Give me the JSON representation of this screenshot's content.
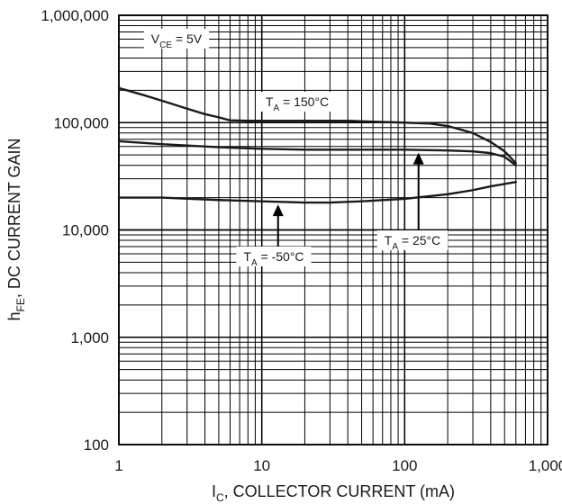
{
  "chart_data": {
    "type": "line",
    "x_scale": "log",
    "y_scale": "log",
    "xlim": [
      1,
      1000
    ],
    "ylim": [
      100,
      1000000
    ],
    "grid": true,
    "x_ticks": [
      {
        "value": 1,
        "label": "1"
      },
      {
        "value": 10,
        "label": "10"
      },
      {
        "value": 100,
        "label": "100"
      },
      {
        "value": 1000,
        "label": "1,000"
      }
    ],
    "y_ticks": [
      {
        "value": 100,
        "label": "100"
      },
      {
        "value": 1000,
        "label": "1,000"
      },
      {
        "value": 10000,
        "label": "10,000"
      },
      {
        "value": 100000,
        "label": "100,000"
      },
      {
        "value": 1000000,
        "label": "1,000,000"
      }
    ],
    "xlabel": {
      "main": "I",
      "sub": "C",
      "rest": ", COLLECTOR CURRENT (mA)"
    },
    "ylabel": {
      "main": "h",
      "sub": "FE",
      "rest": ", DC CURRENT GAIN"
    },
    "condition": {
      "main": "V",
      "sub": "CE",
      "rest": " = 5V"
    },
    "series": [
      {
        "name": "150°C",
        "label": {
          "main": "T",
          "sub": "A",
          "rest": " = 150°C"
        },
        "x": [
          1,
          1.5,
          2,
          3,
          4,
          5,
          6,
          8,
          10,
          20,
          40,
          60,
          100,
          150,
          200,
          300,
          400,
          500,
          600
        ],
        "y": [
          210000,
          180000,
          160000,
          135000,
          120000,
          112000,
          105000,
          104000,
          104000,
          104000,
          104000,
          102000,
          100000,
          98000,
          93000,
          80000,
          66000,
          54000,
          42000
        ]
      },
      {
        "name": "25°C",
        "label": {
          "main": "T",
          "sub": "A",
          "rest": " = 25°C"
        },
        "x": [
          1,
          2,
          5,
          10,
          20,
          50,
          100,
          200,
          300,
          400,
          500,
          600
        ],
        "y": [
          67000,
          63000,
          59000,
          57000,
          56000,
          56000,
          56000,
          55000,
          54000,
          52000,
          48000,
          40000
        ]
      },
      {
        "name": "-50°C",
        "label": {
          "main": "T",
          "sub": "A",
          "rest": " = -50°C"
        },
        "x": [
          1,
          2,
          5,
          10,
          20,
          30,
          50,
          100,
          200,
          300,
          400,
          600
        ],
        "y": [
          20000,
          20000,
          19000,
          18500,
          18000,
          18000,
          18500,
          19500,
          21500,
          23500,
          25500,
          28000
        ]
      }
    ],
    "annotations": [
      {
        "target": "-50°C",
        "arrow_at_x": 13,
        "label_pos": "below-left"
      },
      {
        "target": "25°C",
        "arrow_at_x": 125,
        "label_pos": "below-right"
      }
    ]
  }
}
